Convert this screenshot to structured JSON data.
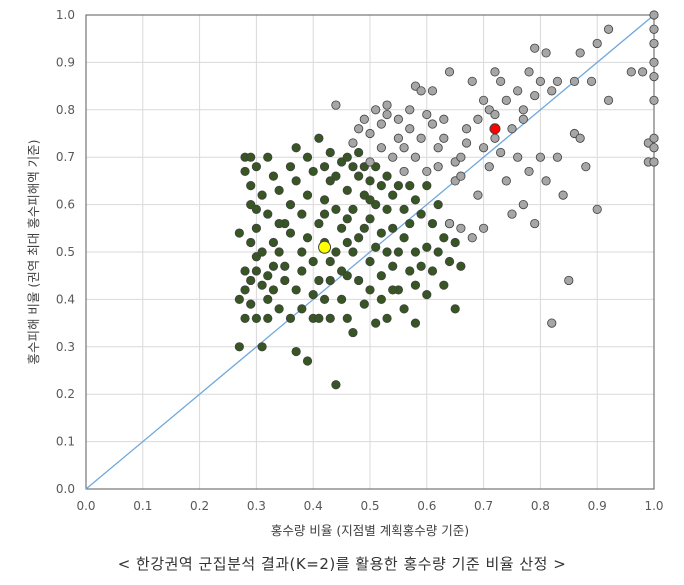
{
  "caption": "< 한강권역 군집분석 결과(K=2)를 활용한 홍수량 기준 비율 산정 >",
  "chart_data": {
    "type": "scatter",
    "xlabel": "홍수량 비율 (지점별 계획홍수량 기준)",
    "ylabel": "홍수피해 비율 (권역 최대 홍수피해액 기준)",
    "xlim": [
      0,
      1
    ],
    "ylim": [
      0,
      1
    ],
    "x_ticks": [
      "0.0",
      "0.1",
      "0.2",
      "0.3",
      "0.4",
      "0.5",
      "0.6",
      "0.7",
      "0.8",
      "0.9",
      "1.0"
    ],
    "y_ticks": [
      "0.0",
      "0.1",
      "0.2",
      "0.3",
      "0.4",
      "0.5",
      "0.6",
      "0.7",
      "0.8",
      "0.9",
      "1.0"
    ],
    "grid": true,
    "reference_line": {
      "from": [
        0,
        0
      ],
      "to": [
        1,
        1
      ],
      "color": "#6fa8dc"
    },
    "colors": {
      "cluster1": "#375623",
      "cluster2": "#a6a6a6",
      "centroid1": "#ffff00",
      "centroid2": "#ff0000",
      "marker_edge": "#404040"
    },
    "series": [
      {
        "marker_color": "#375623",
        "points": [
          [
            0.27,
            0.54
          ],
          [
            0.27,
            0.4
          ],
          [
            0.27,
            0.3
          ],
          [
            0.28,
            0.7
          ],
          [
            0.28,
            0.67
          ],
          [
            0.28,
            0.46
          ],
          [
            0.28,
            0.42
          ],
          [
            0.28,
            0.36
          ],
          [
            0.29,
            0.7
          ],
          [
            0.29,
            0.64
          ],
          [
            0.29,
            0.6
          ],
          [
            0.29,
            0.52
          ],
          [
            0.29,
            0.44
          ],
          [
            0.29,
            0.39
          ],
          [
            0.3,
            0.68
          ],
          [
            0.3,
            0.55
          ],
          [
            0.3,
            0.49
          ],
          [
            0.3,
            0.46
          ],
          [
            0.3,
            0.36
          ],
          [
            0.31,
            0.62
          ],
          [
            0.31,
            0.5
          ],
          [
            0.31,
            0.43
          ],
          [
            0.31,
            0.3
          ],
          [
            0.32,
            0.7
          ],
          [
            0.32,
            0.58
          ],
          [
            0.32,
            0.45
          ],
          [
            0.32,
            0.4
          ],
          [
            0.32,
            0.36
          ],
          [
            0.33,
            0.66
          ],
          [
            0.33,
            0.52
          ],
          [
            0.33,
            0.42
          ],
          [
            0.34,
            0.63
          ],
          [
            0.34,
            0.5
          ],
          [
            0.34,
            0.38
          ],
          [
            0.35,
            0.56
          ],
          [
            0.35,
            0.47
          ],
          [
            0.35,
            0.44
          ],
          [
            0.36,
            0.68
          ],
          [
            0.36,
            0.6
          ],
          [
            0.36,
            0.54
          ],
          [
            0.36,
            0.36
          ],
          [
            0.37,
            0.72
          ],
          [
            0.37,
            0.65
          ],
          [
            0.37,
            0.42
          ],
          [
            0.37,
            0.29
          ],
          [
            0.38,
            0.58
          ],
          [
            0.38,
            0.5
          ],
          [
            0.38,
            0.46
          ],
          [
            0.39,
            0.7
          ],
          [
            0.39,
            0.62
          ],
          [
            0.39,
            0.53
          ],
          [
            0.39,
            0.27
          ],
          [
            0.4,
            0.67
          ],
          [
            0.4,
            0.48
          ],
          [
            0.4,
            0.41
          ],
          [
            0.4,
            0.36
          ],
          [
            0.41,
            0.74
          ],
          [
            0.41,
            0.56
          ],
          [
            0.41,
            0.44
          ],
          [
            0.41,
            0.36
          ],
          [
            0.42,
            0.68
          ],
          [
            0.42,
            0.61
          ],
          [
            0.42,
            0.52
          ],
          [
            0.42,
            0.4
          ],
          [
            0.43,
            0.71
          ],
          [
            0.43,
            0.65
          ],
          [
            0.43,
            0.48
          ],
          [
            0.43,
            0.44
          ],
          [
            0.43,
            0.36
          ],
          [
            0.44,
            0.66
          ],
          [
            0.44,
            0.59
          ],
          [
            0.44,
            0.5
          ],
          [
            0.44,
            0.22
          ],
          [
            0.45,
            0.69
          ],
          [
            0.45,
            0.55
          ],
          [
            0.45,
            0.46
          ],
          [
            0.45,
            0.4
          ],
          [
            0.46,
            0.7
          ],
          [
            0.46,
            0.63
          ],
          [
            0.46,
            0.57
          ],
          [
            0.46,
            0.45
          ],
          [
            0.46,
            0.36
          ],
          [
            0.47,
            0.68
          ],
          [
            0.47,
            0.59
          ],
          [
            0.47,
            0.5
          ],
          [
            0.47,
            0.33
          ],
          [
            0.48,
            0.71
          ],
          [
            0.48,
            0.66
          ],
          [
            0.48,
            0.53
          ],
          [
            0.48,
            0.44
          ],
          [
            0.49,
            0.68
          ],
          [
            0.49,
            0.62
          ],
          [
            0.49,
            0.55
          ],
          [
            0.49,
            0.39
          ],
          [
            0.5,
            0.65
          ],
          [
            0.5,
            0.57
          ],
          [
            0.5,
            0.48
          ],
          [
            0.5,
            0.42
          ],
          [
            0.51,
            0.68
          ],
          [
            0.51,
            0.6
          ],
          [
            0.51,
            0.51
          ],
          [
            0.51,
            0.35
          ],
          [
            0.52,
            0.64
          ],
          [
            0.52,
            0.54
          ],
          [
            0.52,
            0.45
          ],
          [
            0.52,
            0.4
          ],
          [
            0.53,
            0.66
          ],
          [
            0.53,
            0.59
          ],
          [
            0.53,
            0.5
          ],
          [
            0.53,
            0.36
          ],
          [
            0.54,
            0.62
          ],
          [
            0.54,
            0.55
          ],
          [
            0.54,
            0.47
          ],
          [
            0.55,
            0.64
          ],
          [
            0.55,
            0.5
          ],
          [
            0.55,
            0.42
          ],
          [
            0.56,
            0.59
          ],
          [
            0.56,
            0.53
          ],
          [
            0.56,
            0.38
          ],
          [
            0.57,
            0.64
          ],
          [
            0.57,
            0.56
          ],
          [
            0.57,
            0.46
          ],
          [
            0.58,
            0.61
          ],
          [
            0.58,
            0.5
          ],
          [
            0.58,
            0.43
          ],
          [
            0.58,
            0.35
          ],
          [
            0.59,
            0.58
          ],
          [
            0.59,
            0.47
          ],
          [
            0.6,
            0.64
          ],
          [
            0.6,
            0.51
          ],
          [
            0.6,
            0.41
          ],
          [
            0.61,
            0.56
          ],
          [
            0.61,
            0.46
          ],
          [
            0.62,
            0.6
          ],
          [
            0.62,
            0.5
          ],
          [
            0.63,
            0.53
          ],
          [
            0.63,
            0.43
          ],
          [
            0.64,
            0.56
          ],
          [
            0.64,
            0.48
          ],
          [
            0.65,
            0.52
          ],
          [
            0.65,
            0.38
          ],
          [
            0.66,
            0.47
          ],
          [
            0.3,
            0.59
          ],
          [
            0.34,
            0.56
          ],
          [
            0.38,
            0.38
          ],
          [
            0.42,
            0.58
          ],
          [
            0.46,
            0.52
          ],
          [
            0.5,
            0.61
          ],
          [
            0.54,
            0.42
          ],
          [
            0.33,
            0.47
          ]
        ]
      },
      {
        "marker_color": "#a6a6a6",
        "points": [
          [
            0.44,
            0.81
          ],
          [
            0.47,
            0.73
          ],
          [
            0.48,
            0.76
          ],
          [
            0.49,
            0.78
          ],
          [
            0.5,
            0.75
          ],
          [
            0.5,
            0.69
          ],
          [
            0.51,
            0.8
          ],
          [
            0.52,
            0.72
          ],
          [
            0.52,
            0.77
          ],
          [
            0.53,
            0.81
          ],
          [
            0.54,
            0.7
          ],
          [
            0.55,
            0.78
          ],
          [
            0.55,
            0.74
          ],
          [
            0.56,
            0.67
          ],
          [
            0.56,
            0.72
          ],
          [
            0.57,
            0.8
          ],
          [
            0.57,
            0.76
          ],
          [
            0.58,
            0.85
          ],
          [
            0.58,
            0.7
          ],
          [
            0.59,
            0.84
          ],
          [
            0.59,
            0.74
          ],
          [
            0.6,
            0.79
          ],
          [
            0.6,
            0.67
          ],
          [
            0.61,
            0.77
          ],
          [
            0.62,
            0.72
          ],
          [
            0.62,
            0.68
          ],
          [
            0.63,
            0.78
          ],
          [
            0.63,
            0.74
          ],
          [
            0.64,
            0.88
          ],
          [
            0.64,
            0.56
          ],
          [
            0.65,
            0.69
          ],
          [
            0.65,
            0.65
          ],
          [
            0.66,
            0.7
          ],
          [
            0.66,
            0.55
          ],
          [
            0.67,
            0.76
          ],
          [
            0.67,
            0.73
          ],
          [
            0.68,
            0.86
          ],
          [
            0.68,
            0.53
          ],
          [
            0.69,
            0.78
          ],
          [
            0.69,
            0.62
          ],
          [
            0.7,
            0.82
          ],
          [
            0.7,
            0.72
          ],
          [
            0.7,
            0.55
          ],
          [
            0.71,
            0.8
          ],
          [
            0.71,
            0.68
          ],
          [
            0.72,
            0.88
          ],
          [
            0.72,
            0.79
          ],
          [
            0.73,
            0.86
          ],
          [
            0.73,
            0.71
          ],
          [
            0.74,
            0.82
          ],
          [
            0.74,
            0.65
          ],
          [
            0.75,
            0.76
          ],
          [
            0.75,
            0.58
          ],
          [
            0.76,
            0.84
          ],
          [
            0.76,
            0.7
          ],
          [
            0.77,
            0.8
          ],
          [
            0.77,
            0.6
          ],
          [
            0.78,
            0.88
          ],
          [
            0.78,
            0.67
          ],
          [
            0.79,
            0.83
          ],
          [
            0.79,
            0.56
          ],
          [
            0.8,
            0.86
          ],
          [
            0.8,
            0.7
          ],
          [
            0.81,
            0.92
          ],
          [
            0.81,
            0.65
          ],
          [
            0.82,
            0.84
          ],
          [
            0.82,
            0.35
          ],
          [
            0.83,
            0.86
          ],
          [
            0.83,
            0.7
          ],
          [
            0.84,
            0.62
          ],
          [
            0.85,
            0.44
          ],
          [
            0.86,
            0.86
          ],
          [
            0.86,
            0.75
          ],
          [
            0.87,
            0.92
          ],
          [
            0.87,
            0.74
          ],
          [
            0.88,
            0.68
          ],
          [
            0.89,
            0.86
          ],
          [
            0.9,
            0.94
          ],
          [
            0.9,
            0.59
          ],
          [
            0.92,
            0.97
          ],
          [
            0.92,
            0.82
          ],
          [
            0.96,
            0.88
          ],
          [
            0.98,
            0.88
          ],
          [
            0.99,
            0.73
          ],
          [
            0.99,
            0.69
          ],
          [
            1.0,
            1.0
          ],
          [
            1.0,
            0.97
          ],
          [
            1.0,
            0.94
          ],
          [
            1.0,
            0.9
          ],
          [
            1.0,
            0.87
          ],
          [
            1.0,
            0.82
          ],
          [
            1.0,
            0.74
          ],
          [
            1.0,
            0.72
          ],
          [
            1.0,
            0.69
          ],
          [
            0.79,
            0.93
          ],
          [
            0.61,
            0.84
          ],
          [
            0.53,
            0.79
          ],
          [
            0.66,
            0.66
          ],
          [
            0.72,
            0.74
          ],
          [
            0.77,
            0.78
          ]
        ]
      }
    ],
    "centroids": [
      {
        "x": 0.42,
        "y": 0.51,
        "color": "#ffff00"
      },
      {
        "x": 0.72,
        "y": 0.76,
        "color": "#ff0000"
      }
    ]
  }
}
